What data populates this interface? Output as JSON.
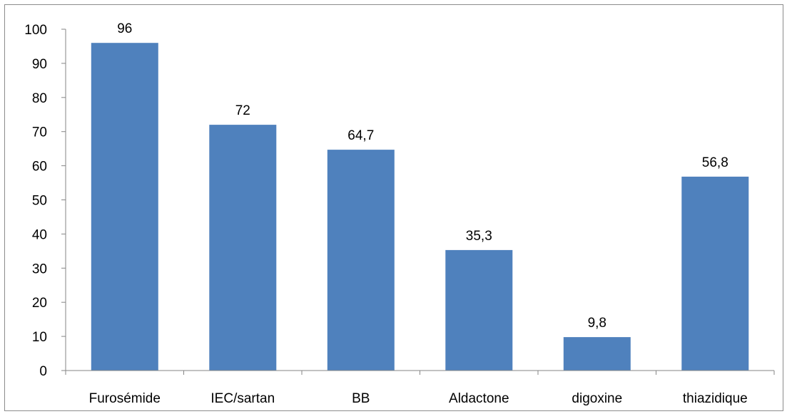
{
  "chart_data": {
    "type": "bar",
    "title": "",
    "xlabel": "",
    "ylabel": "",
    "categories": [
      "Furosémide",
      "IEC/sartan",
      "BB",
      "Aldactone",
      "digoxine",
      "thiazidique"
    ],
    "values": [
      96,
      72,
      64.7,
      35.3,
      9.8,
      56.8
    ],
    "value_labels": [
      "96",
      "72",
      "64,7",
      "35,3",
      "9,8",
      "56,8"
    ],
    "ylim": [
      0,
      100
    ],
    "yticks": [
      0,
      10,
      20,
      30,
      40,
      50,
      60,
      70,
      80,
      90,
      100
    ],
    "grid": false,
    "legend": "none",
    "bar_color": "#4f81bd",
    "axis_color": "#868686"
  }
}
